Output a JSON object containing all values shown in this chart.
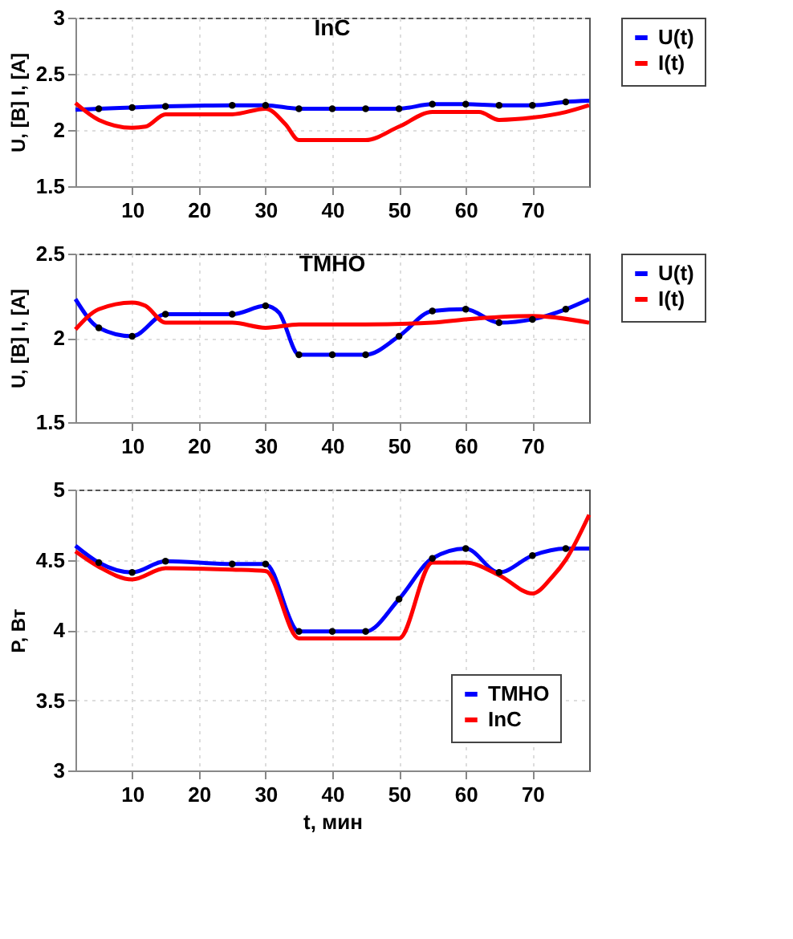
{
  "chart_data": [
    {
      "type": "line",
      "title": "InC",
      "ylabel": "U, [B]  I, [A]",
      "xlim": [
        1.5,
        78.5
      ],
      "xticks": [
        10,
        20,
        30,
        40,
        50,
        60,
        70
      ],
      "ylim": [
        1.5,
        3
      ],
      "yticks": [
        1.5,
        2,
        2.5,
        3
      ],
      "grid": true,
      "legend": "right",
      "series": [
        {
          "type": "scatter",
          "color": "#000000",
          "marker": "circle",
          "x": [
            5,
            10,
            15,
            25,
            30,
            35,
            40,
            45,
            50,
            55,
            60,
            65,
            70,
            75
          ],
          "values": [
            2.19,
            2.2,
            2.21,
            2.22,
            2.22,
            2.19,
            2.19,
            2.19,
            2.19,
            2.23,
            2.23,
            2.22,
            2.22,
            2.25
          ]
        },
        {
          "name": "U(t)",
          "color": "#0000ff",
          "x": [
            1.5,
            5,
            10,
            15,
            25,
            30,
            35,
            40,
            45,
            50,
            55,
            60,
            65,
            70,
            75,
            78.5
          ],
          "values": [
            2.18,
            2.19,
            2.2,
            2.21,
            2.22,
            2.22,
            2.19,
            2.19,
            2.19,
            2.19,
            2.23,
            2.23,
            2.22,
            2.22,
            2.25,
            2.26
          ]
        },
        {
          "name": "I(t)",
          "color": "#ff0000",
          "x": [
            1.5,
            5,
            10,
            12,
            15,
            25,
            30,
            33,
            35,
            45,
            50,
            55,
            62,
            65,
            70,
            75,
            78.5
          ],
          "values": [
            2.24,
            2.09,
            2.02,
            2.03,
            2.14,
            2.14,
            2.19,
            2.05,
            1.91,
            1.91,
            2.03,
            2.16,
            2.16,
            2.09,
            2.11,
            2.16,
            2.22
          ]
        }
      ]
    },
    {
      "type": "line",
      "title": "TMHO",
      "ylabel": "U, [B]  I, [A]",
      "xlim": [
        1.5,
        78.5
      ],
      "xticks": [
        10,
        20,
        30,
        40,
        50,
        60,
        70
      ],
      "ylim": [
        1.5,
        2.5
      ],
      "yticks": [
        1.5,
        2,
        2.5
      ],
      "grid": true,
      "legend": "right",
      "series": [
        {
          "type": "scatter",
          "color": "#000000",
          "marker": "circle",
          "x": [
            5,
            10,
            15,
            25,
            30,
            35,
            40,
            45,
            50,
            55,
            60,
            65,
            70,
            75
          ],
          "values": [
            2.06,
            2.01,
            2.14,
            2.14,
            2.19,
            1.9,
            1.9,
            1.9,
            2.01,
            2.16,
            2.17,
            2.09,
            2.11,
            2.17
          ]
        },
        {
          "name": "U(t)",
          "color": "#0000ff",
          "x": [
            1.5,
            5,
            10,
            15,
            25,
            30,
            32,
            35,
            40,
            45,
            50,
            55,
            60,
            65,
            70,
            75,
            78.5
          ],
          "values": [
            2.23,
            2.06,
            2.01,
            2.14,
            2.14,
            2.19,
            2.15,
            1.9,
            1.9,
            1.9,
            2.01,
            2.16,
            2.17,
            2.09,
            2.11,
            2.17,
            2.23
          ]
        },
        {
          "name": "I(t)",
          "color": "#ff0000",
          "x": [
            1.5,
            5,
            10,
            12,
            15,
            25,
            30,
            35,
            45,
            55,
            60,
            70,
            78.5
          ],
          "values": [
            2.05,
            2.17,
            2.21,
            2.19,
            2.09,
            2.09,
            2.06,
            2.08,
            2.08,
            2.09,
            2.11,
            2.13,
            2.09
          ]
        }
      ]
    },
    {
      "type": "line",
      "xlabel": "t, мин",
      "ylabel": "P, Вт",
      "xlim": [
        1.5,
        78.5
      ],
      "xticks": [
        10,
        20,
        30,
        40,
        50,
        60,
        70
      ],
      "ylim": [
        3,
        5
      ],
      "yticks": [
        3,
        3.5,
        4,
        4.5,
        5
      ],
      "grid": true,
      "legend": "bottom right",
      "series": [
        {
          "type": "scatter",
          "color": "#000000",
          "marker": "circle",
          "x": [
            5,
            10,
            15,
            25,
            30,
            35,
            40,
            45,
            50,
            55,
            60,
            65,
            70,
            75
          ],
          "values": [
            4.48,
            4.41,
            4.49,
            4.47,
            4.47,
            3.99,
            3.99,
            3.99,
            4.22,
            4.51,
            4.58,
            4.41,
            4.53,
            4.58
          ]
        },
        {
          "name": "TMHO",
          "color": "#0000ff",
          "x": [
            1.5,
            5,
            10,
            15,
            25,
            30,
            35,
            40,
            45,
            50,
            55,
            60,
            65,
            70,
            75,
            78.5
          ],
          "values": [
            4.6,
            4.48,
            4.41,
            4.49,
            4.47,
            4.47,
            3.99,
            3.99,
            3.99,
            4.22,
            4.51,
            4.58,
            4.41,
            4.53,
            4.58,
            4.58
          ]
        },
        {
          "name": "InC",
          "color": "#ff0000",
          "x": [
            1.5,
            5,
            10,
            15,
            25,
            30,
            35,
            45,
            50,
            55,
            60,
            65,
            70,
            73,
            75,
            78.5
          ],
          "values": [
            4.56,
            4.45,
            4.36,
            4.44,
            4.43,
            4.42,
            3.94,
            3.94,
            3.94,
            4.48,
            4.48,
            4.39,
            4.26,
            4.38,
            4.5,
            4.82
          ]
        }
      ]
    }
  ]
}
